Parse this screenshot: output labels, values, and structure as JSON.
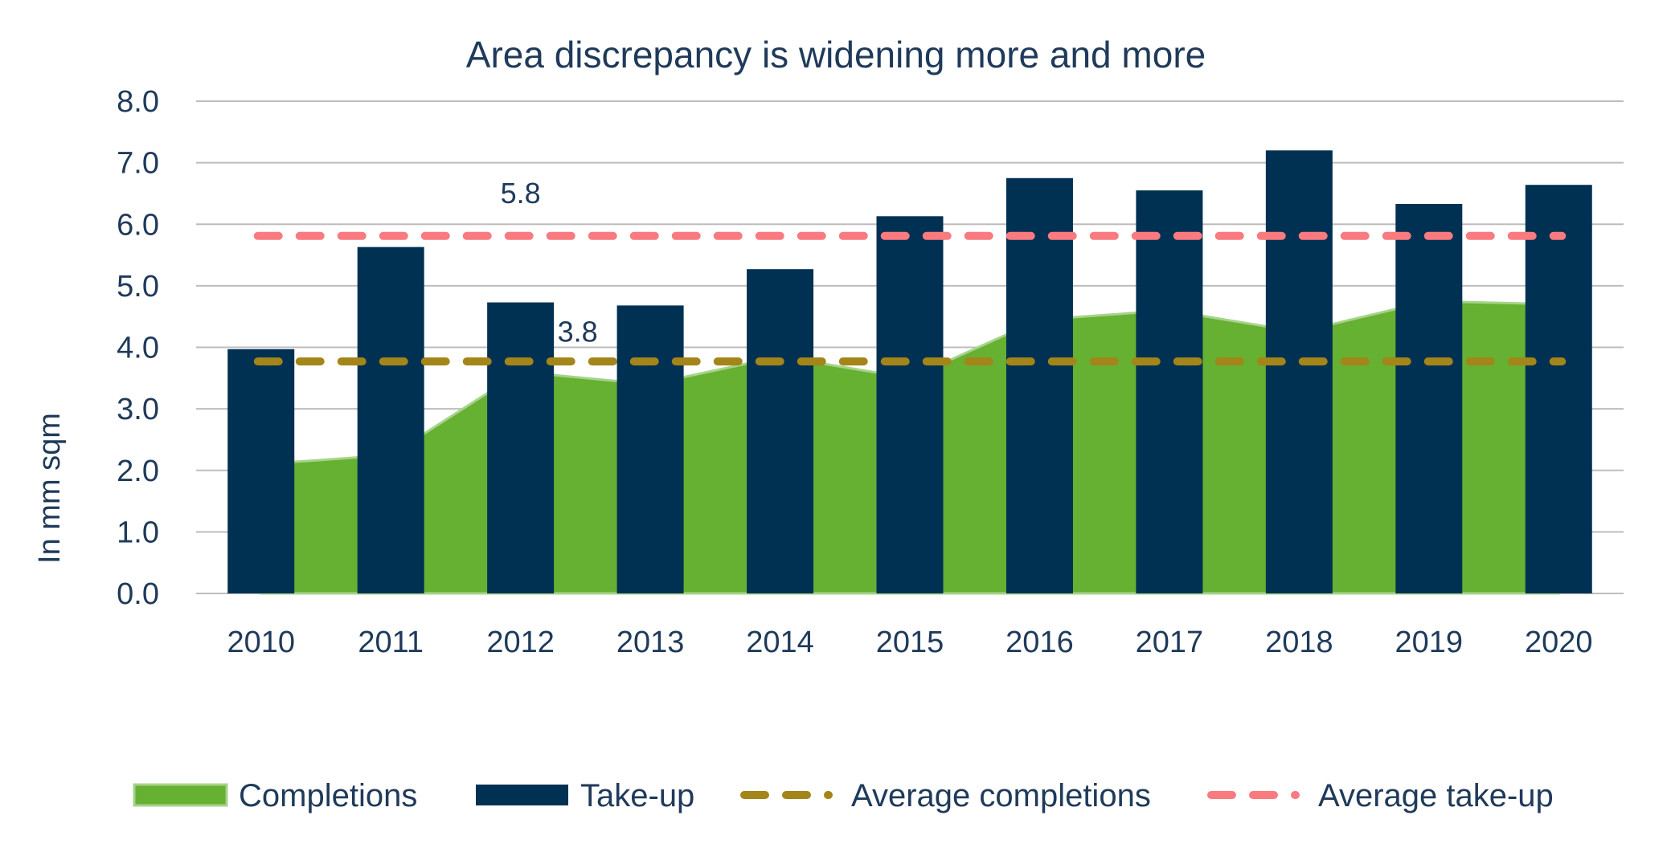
{
  "chart_data": {
    "type": "bar",
    "title": "Area discrepancy is widening more and more",
    "ylabel": "In mm sqm",
    "xlabel": "",
    "ylim": [
      0,
      8
    ],
    "yticks": [
      "0.0",
      "1.0",
      "2.0",
      "3.0",
      "4.0",
      "5.0",
      "6.0",
      "7.0",
      "8.0"
    ],
    "grid": true,
    "legend_position": "bottom",
    "categories": [
      "2010",
      "2011",
      "2012",
      "2013",
      "2014",
      "2015",
      "2016",
      "2017",
      "2018",
      "2019",
      "2020"
    ],
    "series": [
      {
        "name": "Completions",
        "kind": "area",
        "color": "#66b032",
        "values": [
          2.1,
          2.25,
          3.6,
          3.4,
          3.85,
          3.5,
          4.45,
          4.6,
          4.25,
          4.75,
          4.7
        ]
      },
      {
        "name": "Take-up",
        "kind": "bar",
        "color": "#003152",
        "values": [
          3.97,
          5.63,
          4.73,
          4.68,
          5.27,
          6.13,
          6.75,
          6.55,
          7.2,
          6.33,
          6.64
        ]
      },
      {
        "name": "Average completions",
        "kind": "dashed-line",
        "color": "#a38519",
        "value": 3.77
      },
      {
        "name": "Average take-up",
        "kind": "dashed-line",
        "color": "#f97a7f",
        "value": 5.81
      }
    ],
    "annotations": [
      {
        "text": "5.8",
        "x": "2012",
        "y": 6.5
      },
      {
        "text": "3.8",
        "x": "2012",
        "y": 4.25
      }
    ]
  }
}
